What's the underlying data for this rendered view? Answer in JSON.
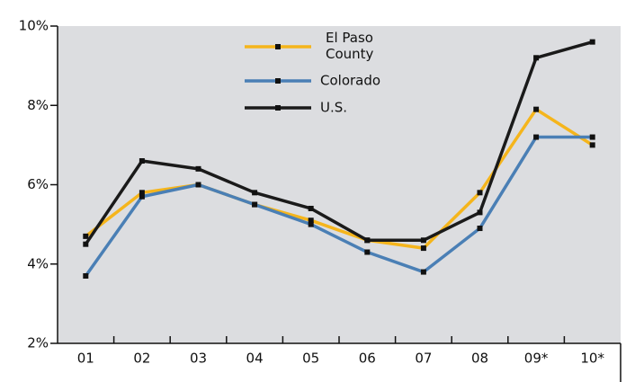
{
  "chart_data": {
    "type": "line",
    "categories": [
      "01",
      "02",
      "03",
      "04",
      "05",
      "06",
      "07",
      "08",
      "09*",
      "10*"
    ],
    "series": [
      {
        "name": "El Paso County",
        "color": "#f5b51c",
        "values": [
          4.7,
          5.8,
          6.0,
          5.5,
          5.1,
          4.6,
          4.4,
          5.8,
          7.9,
          7.0
        ]
      },
      {
        "name": "Colorado",
        "color": "#4a7fb5",
        "values": [
          3.7,
          5.7,
          6.0,
          5.5,
          5.0,
          4.3,
          3.8,
          4.9,
          7.2,
          7.2
        ]
      },
      {
        "name": "U.S.",
        "color": "#1a1a1a",
        "values": [
          4.5,
          6.6,
          6.4,
          5.8,
          5.4,
          4.6,
          4.6,
          5.3,
          9.2,
          9.6
        ]
      }
    ],
    "ylim": [
      2,
      10
    ],
    "yticks": [
      {
        "value": 2,
        "label": "2%"
      },
      {
        "value": 4,
        "label": "4%"
      },
      {
        "value": 6,
        "label": "6%"
      },
      {
        "value": 8,
        "label": "8%"
      },
      {
        "value": 10,
        "label": "10%"
      }
    ]
  }
}
